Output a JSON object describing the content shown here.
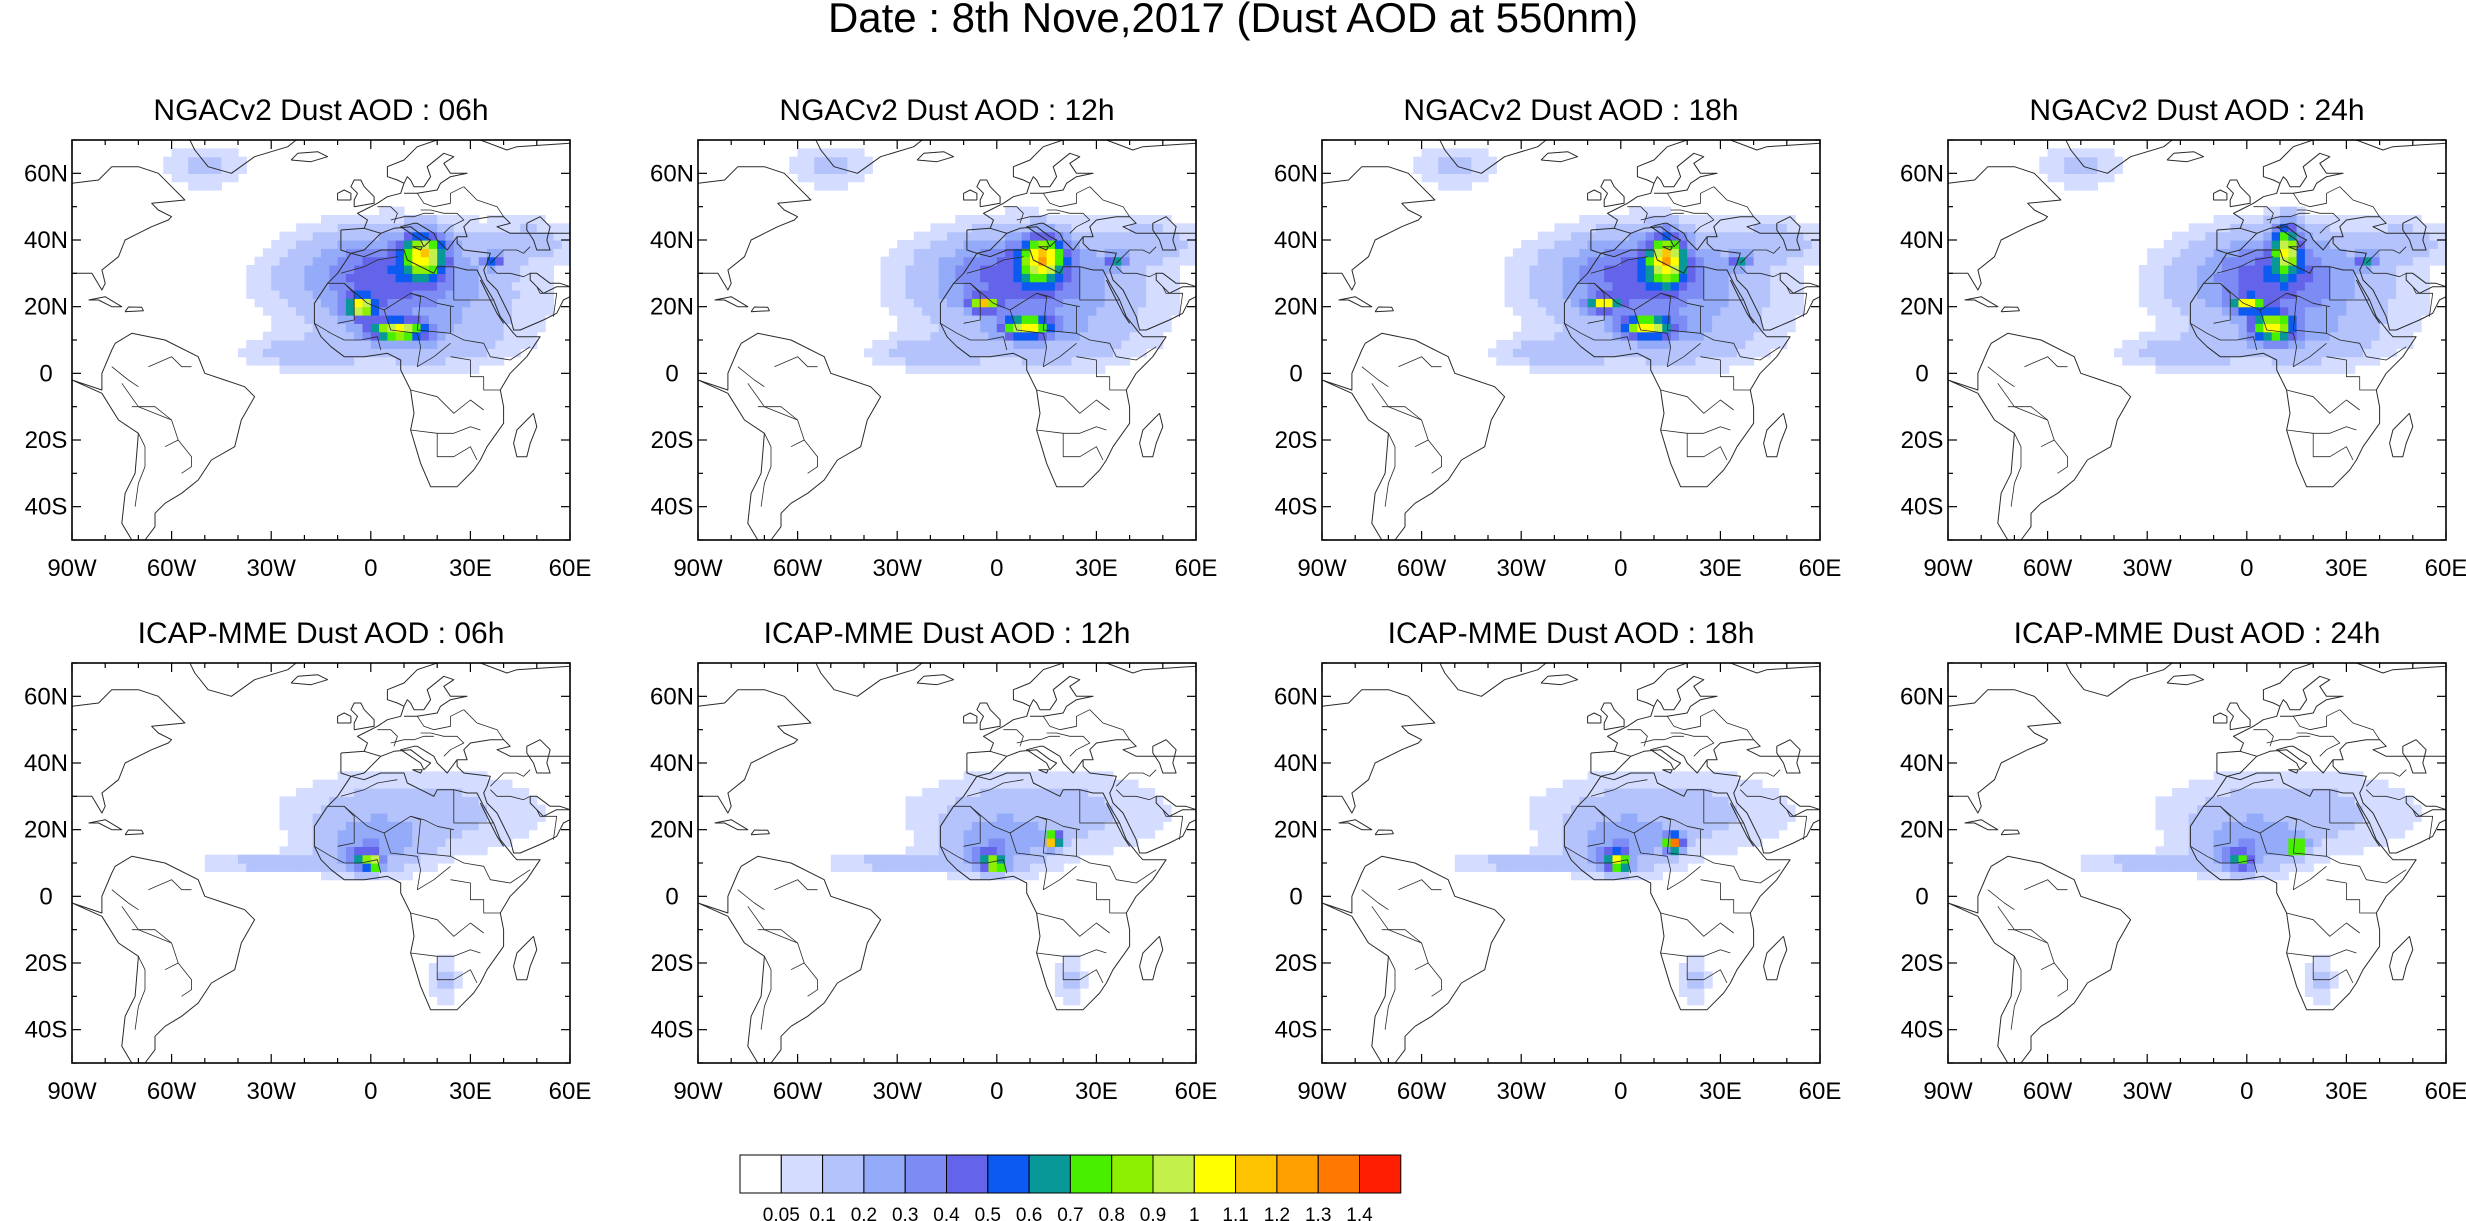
{
  "figure_title": "Date : 8th Nove,2017 (Dust AOD at 550nm)",
  "axes": {
    "lon_ticks": [
      {
        "value": -90,
        "label": "90W"
      },
      {
        "value": -60,
        "label": "60W"
      },
      {
        "value": -30,
        "label": "30W"
      },
      {
        "value": 0,
        "label": "0"
      },
      {
        "value": 30,
        "label": "30E"
      },
      {
        "value": 60,
        "label": "60E"
      }
    ],
    "lat_ticks": [
      {
        "value": 60,
        "label": "60N"
      },
      {
        "value": 40,
        "label": "40N"
      },
      {
        "value": 20,
        "label": "20N"
      },
      {
        "value": 0,
        "label": "0"
      },
      {
        "value": -20,
        "label": "20S"
      },
      {
        "value": -40,
        "label": "40S"
      }
    ],
    "lon_range": [
      -90,
      60
    ],
    "lat_range": [
      -50,
      70
    ]
  },
  "colorbar": {
    "labels": [
      "0.05",
      "0.1",
      "0.2",
      "0.3",
      "0.4",
      "0.5",
      "0.6",
      "0.7",
      "0.8",
      "0.9",
      "1",
      "1.1",
      "1.2",
      "1.3",
      "1.4"
    ],
    "colors": [
      "#ffffff",
      "#d4dcff",
      "#b4c3fb",
      "#94abf9",
      "#7c8cf4",
      "#6464ea",
      "#0c5af2",
      "#089898",
      "#48f000",
      "#8cf000",
      "#c4f04c",
      "#ffff00",
      "#ffc400",
      "#ffa000",
      "#ff7800",
      "#ff1e00"
    ]
  },
  "panels": [
    {
      "title": "NGACv2 Dust AOD : 06h",
      "model": "NGACv2",
      "hour": "06h"
    },
    {
      "title": "NGACv2 Dust AOD : 12h",
      "model": "NGACv2",
      "hour": "12h"
    },
    {
      "title": "NGACv2 Dust AOD : 18h",
      "model": "NGACv2",
      "hour": "18h"
    },
    {
      "title": "NGACv2 Dust AOD : 24h",
      "model": "NGACv2",
      "hour": "24h"
    },
    {
      "title": "ICAP-MME Dust AOD : 06h",
      "model": "ICAP-MME",
      "hour": "06h"
    },
    {
      "title": "ICAP-MME Dust AOD : 12h",
      "model": "ICAP-MME",
      "hour": "12h"
    },
    {
      "title": "ICAP-MME Dust AOD : 18h",
      "model": "ICAP-MME",
      "hour": "18h"
    },
    {
      "title": "ICAP-MME Dust AOD : 24h",
      "model": "ICAP-MME",
      "hour": "24h"
    }
  ],
  "fields": {
    "ngac": {
      "broad": [
        {
          "lon": 12,
          "lat": 25,
          "rlon": 40,
          "rlat": 17,
          "aod": 0.15
        },
        {
          "lon": 18,
          "lat": 10,
          "rlon": 25,
          "rlat": 9,
          "aod": 0.12
        },
        {
          "lon": -22,
          "lat": 6,
          "rlon": 18,
          "rlat": 5,
          "aod": 0.12
        },
        {
          "lon": -50,
          "lat": 62,
          "rlon": 13,
          "rlat": 7,
          "aod": 0.12
        },
        {
          "lon": 48,
          "lat": 40,
          "rlon": 14,
          "rlat": 6,
          "aod": 0.12
        }
      ],
      "t06": [
        {
          "lon": 4,
          "lat": 30,
          "rlon": 24,
          "rlat": 12,
          "aod": 0.35
        },
        {
          "lon": 16,
          "lat": 36,
          "rlon": 6,
          "rlat": 6,
          "aod": 0.85
        },
        {
          "lon": -3,
          "lat": 20,
          "rlon": 4,
          "rlat": 3,
          "aod": 0.85
        },
        {
          "lon": 8,
          "lat": 13,
          "rlon": 8,
          "rlat": 3,
          "aod": 0.85
        },
        {
          "lon": 37,
          "lat": 34,
          "rlon": 3,
          "rlat": 2,
          "aod": 0.45
        }
      ],
      "t12": [
        {
          "lon": 6,
          "lat": 30,
          "rlon": 24,
          "rlat": 12,
          "aod": 0.35
        },
        {
          "lon": 14,
          "lat": 35,
          "rlon": 6,
          "rlat": 6,
          "aod": 0.85
        },
        {
          "lon": -4,
          "lat": 21,
          "rlon": 4,
          "rlat": 2,
          "aod": 0.85
        },
        {
          "lon": 9,
          "lat": 14,
          "rlon": 7,
          "rlat": 3,
          "aod": 0.85
        },
        {
          "lon": 36,
          "lat": 34,
          "rlon": 3,
          "rlat": 2,
          "aod": 0.45
        }
      ],
      "t18": [
        {
          "lon": 6,
          "lat": 30,
          "rlon": 24,
          "rlat": 12,
          "aod": 0.35
        },
        {
          "lon": 14,
          "lat": 35,
          "rlon": 5,
          "rlat": 7,
          "aod": 0.85
        },
        {
          "lon": -5,
          "lat": 21,
          "rlon": 4,
          "rlat": 2,
          "aod": 0.85
        },
        {
          "lon": 8,
          "lat": 14,
          "rlon": 7,
          "rlat": 3,
          "aod": 0.85
        },
        {
          "lon": 36,
          "lat": 34,
          "rlon": 3,
          "rlat": 2,
          "aod": 0.45
        }
      ],
      "t24": [
        {
          "lon": 8,
          "lat": 30,
          "rlon": 22,
          "rlat": 12,
          "aod": 0.35
        },
        {
          "lon": 12,
          "lat": 38,
          "rlon": 4,
          "rlat": 7,
          "aod": 0.75
        },
        {
          "lon": 0,
          "lat": 21,
          "rlon": 4,
          "rlat": 2,
          "aod": 0.85
        },
        {
          "lon": 8,
          "lat": 14,
          "rlon": 6,
          "rlat": 4,
          "aod": 0.85
        },
        {
          "lon": 36,
          "lat": 34,
          "rlon": 3,
          "rlat": 2,
          "aod": 0.45
        }
      ]
    },
    "icap": {
      "broad": [
        {
          "lon": 12,
          "lat": 25,
          "rlon": 38,
          "rlat": 13,
          "aod": 0.15
        },
        {
          "lon": -30,
          "lat": 10,
          "rlon": 22,
          "rlat": 3,
          "aod": 0.13
        },
        {
          "lon": 0,
          "lat": 15,
          "rlon": 14,
          "rlat": 8,
          "aod": 0.22
        },
        {
          "lon": 22,
          "lat": -25,
          "rlon": 5,
          "rlat": 8,
          "aod": 0.12
        }
      ],
      "t06": [
        {
          "lon": -2,
          "lat": 11,
          "rlon": 4,
          "rlat": 3,
          "aod": 0.5
        },
        {
          "lon": 1,
          "lat": 10,
          "rlon": 2,
          "rlat": 2,
          "aod": 0.65
        }
      ],
      "t12": [
        {
          "lon": -2,
          "lat": 11,
          "rlon": 4,
          "rlat": 3,
          "aod": 0.5
        },
        {
          "lon": 0,
          "lat": 9,
          "rlon": 2,
          "rlat": 2,
          "aod": 0.65
        },
        {
          "lon": 17,
          "lat": 17,
          "rlon": 2,
          "rlat": 2,
          "aod": 1.35
        }
      ],
      "t18": [
        {
          "lon": -2,
          "lat": 11,
          "rlon": 4,
          "rlat": 3,
          "aod": 0.5
        },
        {
          "lon": 0,
          "lat": 10,
          "rlon": 2,
          "rlat": 2,
          "aod": 0.65
        },
        {
          "lon": 16,
          "lat": 16,
          "rlon": 2.5,
          "rlat": 2.5,
          "aod": 1.25
        }
      ],
      "t24": [
        {
          "lon": -2,
          "lat": 11,
          "rlon": 4,
          "rlat": 3,
          "aod": 0.5
        },
        {
          "lon": 15,
          "lat": 15,
          "rlon": 2.5,
          "rlat": 2.5,
          "aod": 0.95
        }
      ]
    }
  }
}
